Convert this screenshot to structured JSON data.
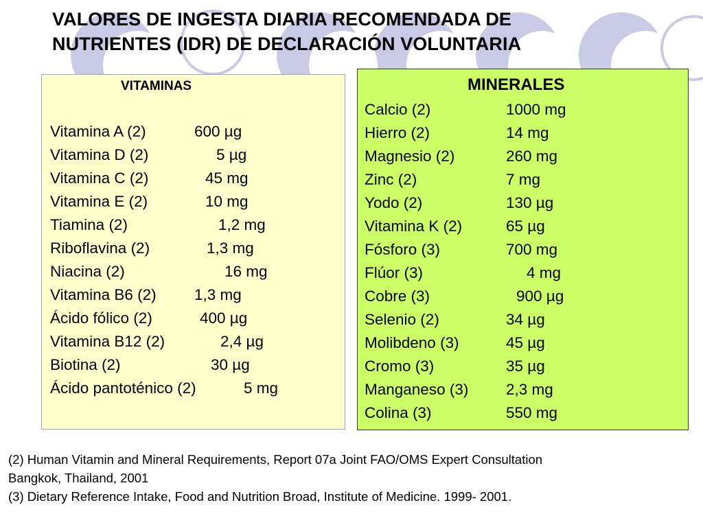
{
  "title": {
    "line1": "VALORES DE INGESTA DIARIA RECOMENDADA DE",
    "line2": "NUTRIENTES (IDR) DE DECLARACIÓN VOLUNTARIA"
  },
  "vitamins": {
    "heading": "VITAMINAS",
    "items": [
      {
        "name": "Vitamina A (2)",
        "value": "600 µg"
      },
      {
        "name": "Vitamina D (2)",
        "value": "5 µg"
      },
      {
        "name": "Vitamina C (2)",
        "value": "45 mg"
      },
      {
        "name": "Vitamina E (2)",
        "value": "10 mg"
      },
      {
        "name": "Tiamina (2)",
        "value": "1,2 mg"
      },
      {
        "name": "Riboflavina (2)",
        "value": "1,3 mg"
      },
      {
        "name": "Niacina (2)",
        "value": "16 mg"
      },
      {
        "name": "Vitamina B6 (2)",
        "value": "1,3 mg"
      },
      {
        "name": "Ácido fólico (2)",
        "value": "400 µg"
      },
      {
        "name": "Vitamina B12 (2)",
        "value": "2,4 µg"
      },
      {
        "name": "Biotina (2)",
        "value": "30 µg"
      },
      {
        "name": "Ácido pantoténico (2)",
        "value": "5 mg"
      }
    ]
  },
  "minerals": {
    "heading": "MINERALES",
    "items": [
      {
        "name": "Calcio (2)",
        "value": "1000 mg"
      },
      {
        "name": "Hierro (2)",
        "value": "14 mg"
      },
      {
        "name": "Magnesio (2)",
        "value": "260 mg"
      },
      {
        "name": "Zinc (2)",
        "value": "7 mg"
      },
      {
        "name": "Yodo (2)",
        "value": "130 µg"
      },
      {
        "name": "Vitamina K (2)",
        "value": "65 µg"
      },
      {
        "name": "Fósforo (3)",
        "value": "700 mg"
      },
      {
        "name": "Flúor (3)",
        "value": "4 mg"
      },
      {
        "name": "Cobre (3)",
        "value": "900 µg"
      },
      {
        "name": "Selenio (2)",
        "value": "34 µg"
      },
      {
        "name": "Molibdeno (3)",
        "value": "45 µg"
      },
      {
        "name": "Cromo (3)",
        "value": "35 µg"
      },
      {
        "name": "Manganeso (3)",
        "value": "2,3 mg"
      },
      {
        "name": "Colina (3)",
        "value": "550 mg"
      }
    ]
  },
  "footnotes": {
    "note2_line1": "(2) Human Vitamin and Mineral Requirements, Report 07a Joint FAO/OMS Expert Consultation",
    "note2_line2": "Bangkok, Thailand, 2001",
    "note3": "(3) Dietary Reference Intake, Food and Nutrition Broad, Institute of Medicine. 1999- 2001."
  },
  "colors": {
    "vitamins_box": "#ffffcc",
    "minerals_box": "#ccff66",
    "decor_circles": "#c9cbe6"
  }
}
